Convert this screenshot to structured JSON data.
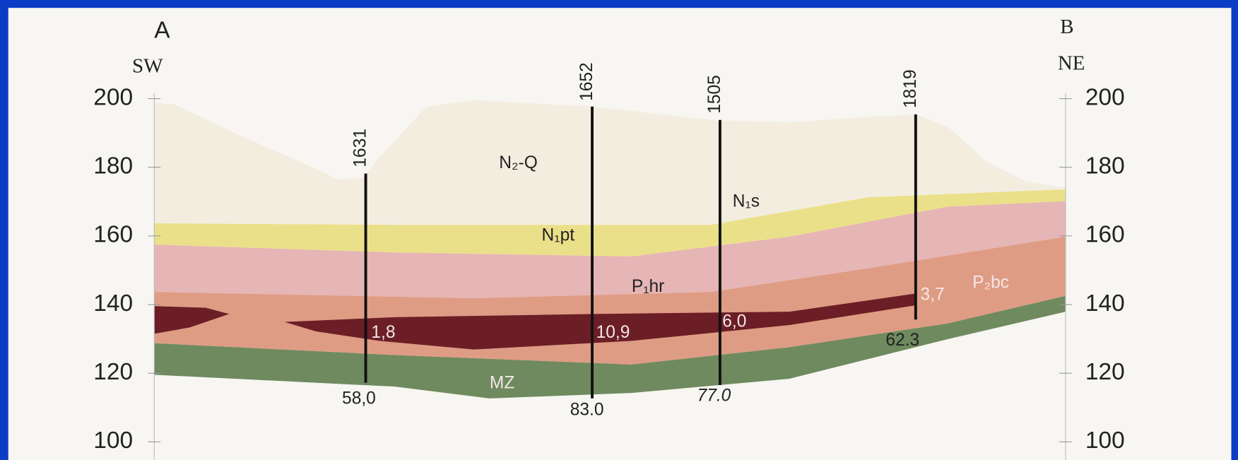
{
  "section": {
    "ends": {
      "left": "A",
      "right": "B",
      "left_direction": "SW",
      "right_direction": "NE"
    },
    "elevation_ticks": [
      200,
      180,
      160,
      140,
      120,
      100
    ],
    "boreholes": [
      {
        "id": "1631",
        "depth": "58,0",
        "thickness": "1,8"
      },
      {
        "id": "1652",
        "depth": "83.0",
        "thickness": "10,9"
      },
      {
        "id": "1505",
        "depth": "77.0",
        "thickness": "6,0"
      },
      {
        "id": "1819",
        "depth": "62.3",
        "thickness": "3,7"
      }
    ],
    "layers": [
      "N₂-Q",
      "N₁s",
      "N₁pt",
      "P₁hr",
      "P₂bc",
      "MZ"
    ]
  }
}
